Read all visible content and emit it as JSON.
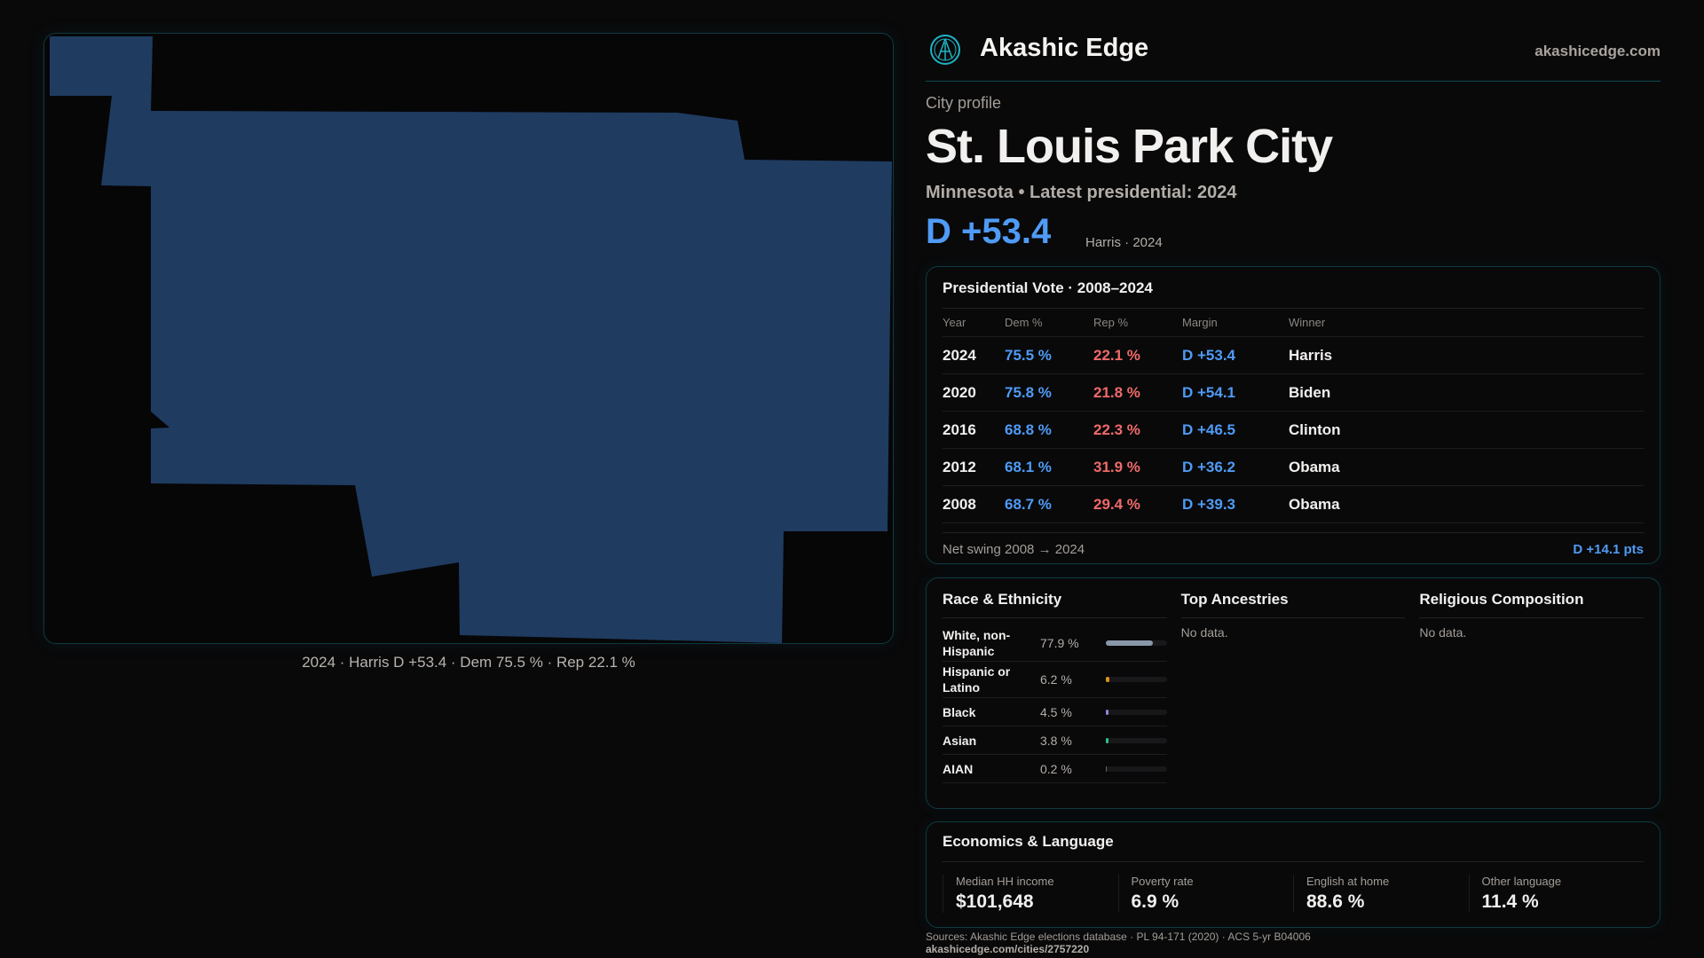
{
  "brand": {
    "name": "Akashic Edge",
    "site": "akashicedge.com",
    "logo": "akashic-edge-logo"
  },
  "profile": {
    "kicker": "City profile",
    "title": "St. Louis Park City",
    "subtitle": "Minnesota • Latest presidential: 2024",
    "margin": "D +53.4",
    "margin_detail": "Harris · 2024"
  },
  "map": {
    "fill": "#1f3b60",
    "caption": "2024 · Harris D +53.4 · Dem 75.5 % · Rep 22.1 %"
  },
  "vote": {
    "title": "Presidential Vote · 2008–2024",
    "headers": [
      "Year",
      "Dem %",
      "Rep %",
      "Margin",
      "Winner"
    ],
    "rows": [
      [
        "2024",
        "75.5 %",
        "22.1 %",
        "D +53.4",
        "Harris"
      ],
      [
        "2020",
        "75.8 %",
        "21.8 %",
        "D +54.1",
        "Biden"
      ],
      [
        "2016",
        "68.8 %",
        "22.3 %",
        "D +46.5",
        "Clinton"
      ],
      [
        "2012",
        "68.1 %",
        "31.9 %",
        "D +36.2",
        "Obama"
      ],
      [
        "2008",
        "68.7 %",
        "29.4 %",
        "D +39.3",
        "Obama"
      ]
    ],
    "swing_label": "Net swing 2008 → 2024",
    "swing_value": "D +14.1 pts"
  },
  "race": {
    "title": "Race & Ethnicity",
    "rows": [
      {
        "label": "White, non-Hispanic",
        "pct": "77.9 %",
        "value": 77.9,
        "color": "#8a97ab"
      },
      {
        "label": "Hispanic or Latino",
        "pct": "6.2 %",
        "value": 6.2,
        "color": "#d9941a"
      },
      {
        "label": "Black",
        "pct": "4.5 %",
        "value": 4.5,
        "color": "#9b7fe0"
      },
      {
        "label": "Asian",
        "pct": "3.8 %",
        "value": 3.8,
        "color": "#2bc18e"
      },
      {
        "label": "AIAN",
        "pct": "0.2 %",
        "value": 0.2,
        "color": "#666"
      }
    ]
  },
  "ancestries": {
    "title": "Top Ancestries",
    "empty": "No data."
  },
  "religion": {
    "title": "Religious Composition",
    "empty": "No data."
  },
  "econ": {
    "title": "Economics & Language",
    "stats": [
      {
        "label": "Median HH income",
        "value": "$101,648"
      },
      {
        "label": "Poverty rate",
        "value": "6.9 %"
      },
      {
        "label": "English at home",
        "value": "88.6 %"
      },
      {
        "label": "Other language",
        "value": "11.4 %"
      }
    ]
  },
  "footer": {
    "sources": "Sources: Akashic Edge elections database · PL 94-171 (2020) · ACS 5-yr B04006",
    "url": "akashicedge.com/cities/2757220"
  }
}
